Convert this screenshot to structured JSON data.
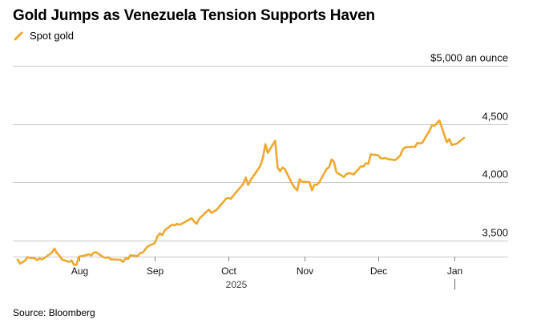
{
  "title": "Gold Jumps as Venezuela Tension Supports Haven",
  "legend": {
    "label": "Spot gold",
    "color": "#f0a830"
  },
  "source": "Source: Bloomberg",
  "chart_data": {
    "type": "line",
    "title": "Gold Jumps as Venezuela Tension Supports Haven",
    "y_unit_label": "$5,000 an ounce",
    "ylim": [
      3250,
      5000
    ],
    "y_ticks": [
      {
        "value": 5000,
        "label": "$5,000 an ounce"
      },
      {
        "value": 4500,
        "label": "4,500"
      },
      {
        "value": 4000,
        "label": "4,000"
      },
      {
        "value": 3500,
        "label": "3,500"
      }
    ],
    "x_ticks": [
      {
        "date": "2025-08-01",
        "label": "Aug"
      },
      {
        "date": "2025-09-01",
        "label": "Sep"
      },
      {
        "date": "2025-10-01",
        "label": "Oct"
      },
      {
        "date": "2025-11-01",
        "label": "Nov"
      },
      {
        "date": "2025-12-01",
        "label": "Dec"
      },
      {
        "date": "2026-01-01",
        "label": "Jan"
      }
    ],
    "year_label": "2025",
    "grid": true,
    "legend_position": "top-left",
    "series": [
      {
        "name": "Spot gold",
        "color": "#f0a830",
        "points": [
          [
            "2025-07-07",
            3335
          ],
          [
            "2025-07-08",
            3300
          ],
          [
            "2025-07-09",
            3313
          ],
          [
            "2025-07-10",
            3325
          ],
          [
            "2025-07-11",
            3355
          ],
          [
            "2025-07-14",
            3345
          ],
          [
            "2025-07-15",
            3330
          ],
          [
            "2025-07-16",
            3345
          ],
          [
            "2025-07-17",
            3337
          ],
          [
            "2025-07-18",
            3350
          ],
          [
            "2025-07-21",
            3395
          ],
          [
            "2025-07-22",
            3430
          ],
          [
            "2025-07-23",
            3390
          ],
          [
            "2025-07-24",
            3370
          ],
          [
            "2025-07-25",
            3336
          ],
          [
            "2025-07-28",
            3314
          ],
          [
            "2025-07-29",
            3327
          ],
          [
            "2025-07-30",
            3290
          ],
          [
            "2025-07-31",
            3290
          ],
          [
            "2025-08-01",
            3360
          ],
          [
            "2025-08-04",
            3373
          ],
          [
            "2025-08-05",
            3380
          ],
          [
            "2025-08-06",
            3370
          ],
          [
            "2025-08-07",
            3395
          ],
          [
            "2025-08-08",
            3398
          ],
          [
            "2025-08-11",
            3355
          ],
          [
            "2025-08-12",
            3350
          ],
          [
            "2025-08-13",
            3355
          ],
          [
            "2025-08-14",
            3336
          ],
          [
            "2025-08-15",
            3336
          ],
          [
            "2025-08-18",
            3332
          ],
          [
            "2025-08-19",
            3315
          ],
          [
            "2025-08-20",
            3345
          ],
          [
            "2025-08-21",
            3340
          ],
          [
            "2025-08-22",
            3372
          ],
          [
            "2025-08-25",
            3365
          ],
          [
            "2025-08-26",
            3392
          ],
          [
            "2025-08-27",
            3396
          ],
          [
            "2025-08-28",
            3420
          ],
          [
            "2025-08-29",
            3448
          ],
          [
            "2025-09-01",
            3478
          ],
          [
            "2025-09-02",
            3534
          ],
          [
            "2025-09-03",
            3560
          ],
          [
            "2025-09-04",
            3545
          ],
          [
            "2025-09-05",
            3586
          ],
          [
            "2025-09-08",
            3636
          ],
          [
            "2025-09-09",
            3628
          ],
          [
            "2025-09-10",
            3642
          ],
          [
            "2025-09-11",
            3634
          ],
          [
            "2025-09-12",
            3643
          ],
          [
            "2025-09-15",
            3679
          ],
          [
            "2025-09-16",
            3690
          ],
          [
            "2025-09-17",
            3660
          ],
          [
            "2025-09-18",
            3643
          ],
          [
            "2025-09-19",
            3685
          ],
          [
            "2025-09-22",
            3746
          ],
          [
            "2025-09-23",
            3764
          ],
          [
            "2025-09-24",
            3736
          ],
          [
            "2025-09-25",
            3749
          ],
          [
            "2025-09-26",
            3760
          ],
          [
            "2025-09-29",
            3833
          ],
          [
            "2025-09-30",
            3859
          ],
          [
            "2025-10-01",
            3864
          ],
          [
            "2025-10-02",
            3857
          ],
          [
            "2025-10-03",
            3886
          ],
          [
            "2025-10-06",
            3961
          ],
          [
            "2025-10-07",
            3985
          ],
          [
            "2025-10-08",
            4040
          ],
          [
            "2025-10-09",
            3976
          ],
          [
            "2025-10-10",
            4018
          ],
          [
            "2025-10-13",
            4110
          ],
          [
            "2025-10-14",
            4142
          ],
          [
            "2025-10-15",
            4209
          ],
          [
            "2025-10-16",
            4326
          ],
          [
            "2025-10-17",
            4252
          ],
          [
            "2025-10-20",
            4356
          ],
          [
            "2025-10-21",
            4126
          ],
          [
            "2025-10-22",
            4095
          ],
          [
            "2025-10-23",
            4126
          ],
          [
            "2025-10-24",
            4112
          ],
          [
            "2025-10-27",
            3983
          ],
          [
            "2025-10-28",
            3952
          ],
          [
            "2025-10-29",
            3930
          ],
          [
            "2025-10-30",
            4025
          ],
          [
            "2025-10-31",
            4002
          ],
          [
            "2025-11-03",
            4001
          ],
          [
            "2025-11-04",
            3930
          ],
          [
            "2025-11-05",
            3979
          ],
          [
            "2025-11-06",
            3977
          ],
          [
            "2025-11-07",
            4000
          ],
          [
            "2025-11-10",
            4115
          ],
          [
            "2025-11-11",
            4128
          ],
          [
            "2025-11-12",
            4195
          ],
          [
            "2025-11-13",
            4173
          ],
          [
            "2025-11-14",
            4085
          ],
          [
            "2025-11-17",
            4045
          ],
          [
            "2025-11-18",
            4067
          ],
          [
            "2025-11-19",
            4078
          ],
          [
            "2025-11-20",
            4075
          ],
          [
            "2025-11-21",
            4065
          ],
          [
            "2025-11-24",
            4136
          ],
          [
            "2025-11-25",
            4134
          ],
          [
            "2025-11-26",
            4163
          ],
          [
            "2025-11-27",
            4158
          ],
          [
            "2025-11-28",
            4238
          ],
          [
            "2025-12-01",
            4232
          ],
          [
            "2025-12-02",
            4205
          ],
          [
            "2025-12-03",
            4204
          ],
          [
            "2025-12-04",
            4208
          ],
          [
            "2025-12-05",
            4198
          ],
          [
            "2025-12-08",
            4190
          ],
          [
            "2025-12-09",
            4208
          ],
          [
            "2025-12-10",
            4228
          ],
          [
            "2025-12-11",
            4280
          ],
          [
            "2025-12-12",
            4299
          ],
          [
            "2025-12-15",
            4304
          ],
          [
            "2025-12-16",
            4302
          ],
          [
            "2025-12-17",
            4338
          ],
          [
            "2025-12-18",
            4332
          ],
          [
            "2025-12-19",
            4339
          ],
          [
            "2025-12-22",
            4445
          ],
          [
            "2025-12-23",
            4491
          ],
          [
            "2025-12-24",
            4485
          ],
          [
            "2025-12-26",
            4530
          ],
          [
            "2025-12-29",
            4343
          ],
          [
            "2025-12-30",
            4370
          ],
          [
            "2025-12-31",
            4319
          ],
          [
            "2026-01-02",
            4330
          ],
          [
            "2026-01-05",
            4380
          ]
        ]
      }
    ]
  }
}
